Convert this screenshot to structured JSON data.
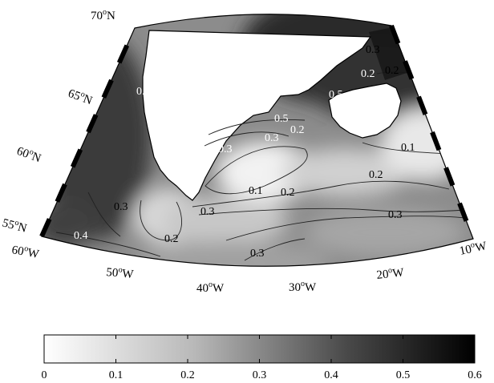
{
  "map": {
    "latitude_labels": [
      {
        "deg": "70",
        "hem": "N"
      },
      {
        "deg": "65",
        "hem": "N"
      },
      {
        "deg": "60",
        "hem": "N"
      },
      {
        "deg": "55",
        "hem": "N"
      }
    ],
    "longitude_labels": [
      {
        "deg": "60",
        "hem": "W"
      },
      {
        "deg": "50",
        "hem": "W"
      },
      {
        "deg": "40",
        "hem": "W"
      },
      {
        "deg": "30",
        "hem": "W"
      },
      {
        "deg": "20",
        "hem": "W"
      },
      {
        "deg": "10",
        "hem": "W"
      }
    ],
    "contour_labels": [
      "0.5",
      "0.5",
      "0.5",
      "0.3",
      "0.2",
      "0.3",
      "0.2",
      "0.1",
      "0.2",
      "0.1",
      "0.2",
      "0.3",
      "0.3",
      "0.2",
      "0.3",
      "0.3",
      "0.4",
      "0.3",
      "0.2"
    ],
    "land_color": "#ffffff",
    "coastline_color": "#000000"
  },
  "colorbar": {
    "min": 0,
    "max": 0.6,
    "tick_labels": [
      "0",
      "0.1",
      "0.2",
      "0.3",
      "0.4",
      "0.5",
      "0.6"
    ],
    "low_color": "#ffffff",
    "high_color": "#000000"
  }
}
